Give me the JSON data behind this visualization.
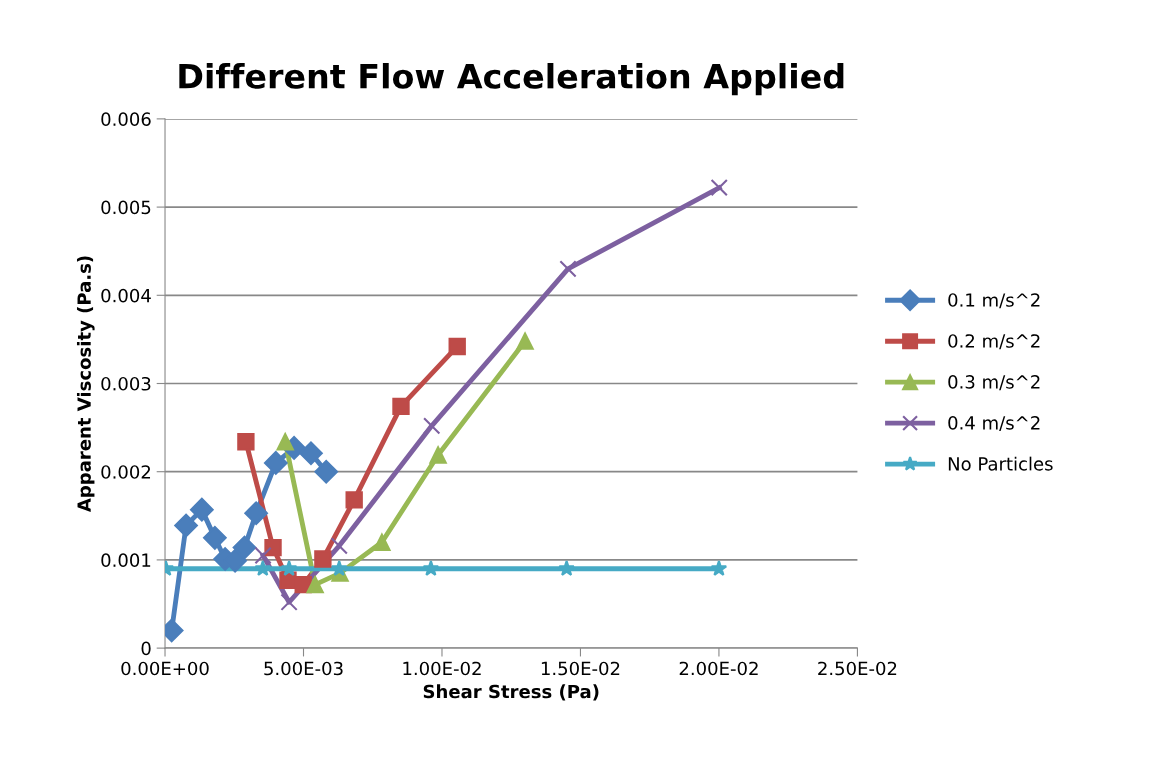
{
  "chart_data": {
    "type": "line",
    "title": "Different Flow Acceleration Applied",
    "xlabel": "Shear Stress (Pa)",
    "ylabel": "Apparent Viscosity (Pa.s)",
    "xlim": [
      0,
      0.025
    ],
    "ylim": [
      0,
      0.006
    ],
    "xticks": [
      {
        "value": 0,
        "label": "0.00E+00"
      },
      {
        "value": 0.005,
        "label": "5.00E-03"
      },
      {
        "value": 0.01,
        "label": "1.00E-02"
      },
      {
        "value": 0.015,
        "label": "1.50E-02"
      },
      {
        "value": 0.02,
        "label": "2.00E-02"
      },
      {
        "value": 0.025,
        "label": "2.50E-02"
      }
    ],
    "yticks": [
      0,
      0.001,
      0.002,
      0.003,
      0.004,
      0.005,
      0.006
    ],
    "grid": "y",
    "legend": "right",
    "line_style": "solid",
    "series": [
      {
        "name": "0.1 m/s^2",
        "color": "#4a7ebb",
        "marker": "diamond",
        "x": [
          0.00024,
          0.00076,
          0.00133,
          0.0018,
          0.00217,
          0.00253,
          0.00287,
          0.00329,
          0.004,
          0.00466,
          0.00527,
          0.00582
        ],
        "values": [
          0.0002,
          0.00139,
          0.00157,
          0.00125,
          0.00101,
          0.00099,
          0.00114,
          0.00153,
          0.0021,
          0.00227,
          0.00221,
          0.002
        ]
      },
      {
        "name": "0.2 m/s^2",
        "color": "#be4b48",
        "marker": "square",
        "x": [
          0.00292,
          0.0039,
          0.00444,
          0.00499,
          0.0057,
          0.00683,
          0.00852,
          0.01055
        ],
        "values": [
          0.00234,
          0.00114,
          0.00077,
          0.00072,
          0.00101,
          0.00168,
          0.00274,
          0.00342
        ]
      },
      {
        "name": "0.3 m/s^2",
        "color": "#98b954",
        "marker": "triangle",
        "x": [
          0.00434,
          0.00542,
          0.00632,
          0.00783,
          0.00986,
          0.013
        ],
        "values": [
          0.00234,
          0.00072,
          0.00085,
          0.0012,
          0.00219,
          0.00348
        ]
      },
      {
        "name": "0.4 m/s^2",
        "color": "#7d60a0",
        "marker": "cross",
        "x": [
          0.00354,
          0.00448,
          0.00629,
          0.00963,
          0.01455,
          0.02001
        ],
        "values": [
          0.00105,
          0.00052,
          0.00116,
          0.00252,
          0.0043,
          0.00522
        ]
      },
      {
        "name": "No Particles",
        "color": "#46aac5",
        "marker": "star",
        "x": [
          3e-05,
          0.00353,
          0.00448,
          0.00629,
          0.0096,
          0.0145,
          0.02
        ],
        "values": [
          0.0009,
          0.0009,
          0.0009,
          0.0009,
          0.0009,
          0.0009,
          0.0009
        ]
      }
    ]
  }
}
